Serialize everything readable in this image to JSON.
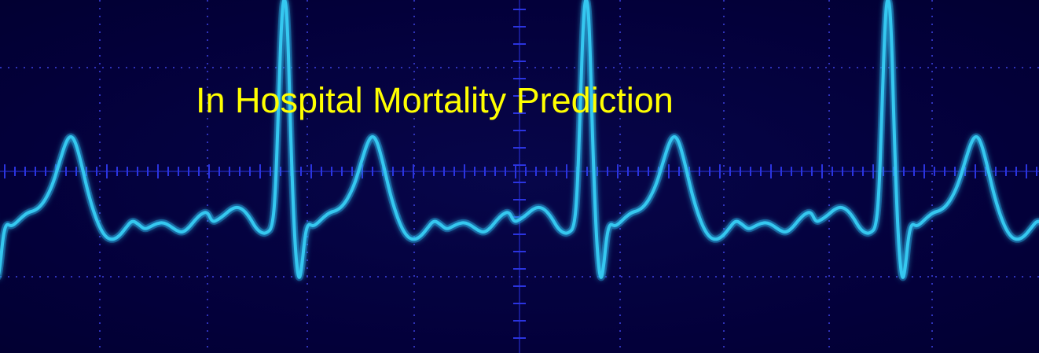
{
  "slide": {
    "title": "In Hospital Mortality Prediction"
  },
  "colors": {
    "background": "#03003d",
    "grid_dots": "#3a3fd8",
    "ticks": "#2b34e0",
    "trace": "#35c8f0",
    "trace_glow": "#1a8fd0",
    "title": "#ffff00"
  },
  "icons": {
    "waveform": "ecg-waveform-icon"
  }
}
